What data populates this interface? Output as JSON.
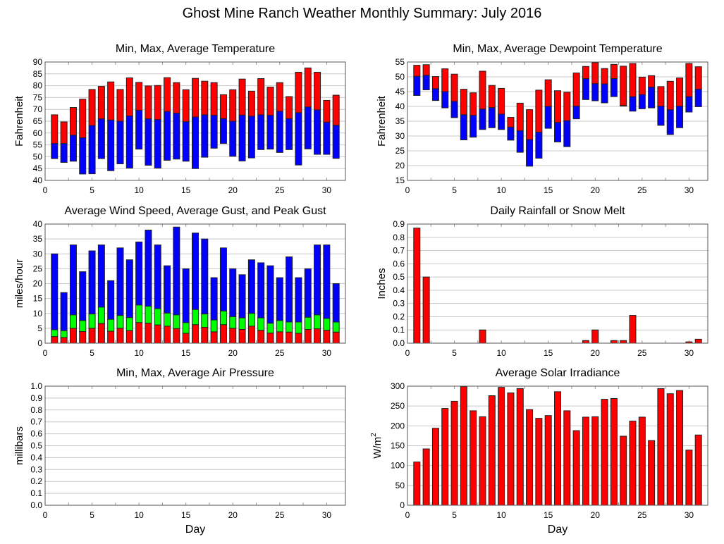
{
  "page_title": "Ghost Mine Ranch Weather Monthly Summary: July 2016",
  "colors": {
    "red": "#ff0000",
    "blue": "#0000ff",
    "green": "#00ff00",
    "grid": "#c8c8c8"
  },
  "chart_data": [
    {
      "id": "temperature",
      "type": "bar",
      "title": "Min, Max, Average Temperature",
      "ylabel": "Fahrenheit",
      "xlabel": "",
      "xlim": [
        0,
        32
      ],
      "ylim": [
        40,
        90
      ],
      "yticks": [
        "40",
        "45",
        "50",
        "55",
        "60",
        "65",
        "70",
        "75",
        "80",
        "85",
        "90"
      ],
      "xticks": [
        "0",
        "5",
        "10",
        "15",
        "20",
        "25",
        "30"
      ],
      "grid": true,
      "x": [
        1,
        2,
        3,
        4,
        5,
        6,
        7,
        8,
        9,
        10,
        11,
        12,
        13,
        14,
        15,
        16,
        17,
        18,
        19,
        20,
        21,
        22,
        23,
        24,
        25,
        26,
        27,
        28,
        29,
        30,
        31
      ],
      "series": [
        {
          "name": "Min",
          "values": [
            49.2,
            47.6,
            48.1,
            42.7,
            42.8,
            49.2,
            44.1,
            47.0,
            45.2,
            53.2,
            46.4,
            45.2,
            48.5,
            49.0,
            48.1,
            45.0,
            49.8,
            53.6,
            55.6,
            50.2,
            48.2,
            49.5,
            53.0,
            53.2,
            51.8,
            53.0,
            46.5,
            53.3,
            51.0,
            51.0,
            49.3
          ]
        },
        {
          "name": "Average",
          "values": [
            55.6,
            55.6,
            59.1,
            58.0,
            63.2,
            66.0,
            65.5,
            65.0,
            67.2,
            69.6,
            66.0,
            65.7,
            69.1,
            68.4,
            64.8,
            66.8,
            67.7,
            67.5,
            66.1,
            65.0,
            67.6,
            67.1,
            67.7,
            67.5,
            69.2,
            66.1,
            68.6,
            71.0,
            69.8,
            64.6,
            63.3
          ]
        },
        {
          "name": "Max",
          "values": [
            67.7,
            64.7,
            70.8,
            74.3,
            78.4,
            79.7,
            81.6,
            78.4,
            83.3,
            81.4,
            79.9,
            80.1,
            83.4,
            81.3,
            78.3,
            83.1,
            81.9,
            81.3,
            76.2,
            78.3,
            82.8,
            77.7,
            83.0,
            79.4,
            81.3,
            75.4,
            85.7,
            87.5,
            85.7,
            73.8,
            76.0
          ]
        }
      ]
    },
    {
      "id": "dewpoint",
      "type": "bar",
      "title": "Min, Max, Average Dewpoint Temperature",
      "ylabel": "Fahrenheit",
      "xlabel": "",
      "xlim": [
        0,
        32
      ],
      "ylim": [
        15,
        55
      ],
      "yticks": [
        "15",
        "20",
        "25",
        "30",
        "35",
        "40",
        "45",
        "50",
        "55"
      ],
      "xticks": [
        "0",
        "5",
        "10",
        "15",
        "20",
        "25",
        "30"
      ],
      "grid": true,
      "x": [
        1,
        2,
        3,
        4,
        5,
        6,
        7,
        8,
        9,
        10,
        11,
        12,
        13,
        14,
        15,
        16,
        17,
        18,
        19,
        20,
        21,
        22,
        23,
        24,
        25,
        26,
        27,
        28,
        29,
        30,
        31
      ],
      "series": [
        {
          "name": "Min",
          "values": [
            43.7,
            45.6,
            42.0,
            39.5,
            36.2,
            28.7,
            29.6,
            32.2,
            32.8,
            32.2,
            28.6,
            24.5,
            19.8,
            22.5,
            32.6,
            28.0,
            26.4,
            35.8,
            42.3,
            41.9,
            41.2,
            43.3,
            40.1,
            38.4,
            39.2,
            39.5,
            33.6,
            30.5,
            32.8,
            38.1,
            39.9
          ]
        },
        {
          "name": "Average",
          "values": [
            50.2,
            50.5,
            46.0,
            45.0,
            41.7,
            37.2,
            37.0,
            39.1,
            39.6,
            37.4,
            33.0,
            31.8,
            28.8,
            31.3,
            40.0,
            34.6,
            35.2,
            40.1,
            49.4,
            47.7,
            47.6,
            49.4,
            40.3,
            43.3,
            44.0,
            46.5,
            40.1,
            38.9,
            40.1,
            43.3,
            45.8
          ]
        },
        {
          "name": "Max",
          "values": [
            53.9,
            54.1,
            50.1,
            52.7,
            50.9,
            45.8,
            44.6,
            51.9,
            47.1,
            46.1,
            36.3,
            41.1,
            38.9,
            45.5,
            49.0,
            45.3,
            44.8,
            51.3,
            53.5,
            54.8,
            52.8,
            54.2,
            53.6,
            54.5,
            49.9,
            50.4,
            46.7,
            48.5,
            49.6,
            54.5,
            53.4
          ]
        }
      ]
    },
    {
      "id": "wind",
      "type": "bar",
      "title": "Average Wind Speed, Average Gust, and Peak Gust",
      "ylabel": "miles/hour",
      "xlabel": "",
      "xlim": [
        0,
        32
      ],
      "ylim": [
        0,
        40
      ],
      "yticks": [
        "0",
        "5",
        "10",
        "15",
        "20",
        "25",
        "30",
        "35",
        "40"
      ],
      "xticks": [
        "0",
        "5",
        "10",
        "15",
        "20",
        "25",
        "30"
      ],
      "grid": true,
      "x": [
        1,
        2,
        3,
        4,
        5,
        6,
        7,
        8,
        9,
        10,
        11,
        12,
        13,
        14,
        15,
        16,
        17,
        18,
        19,
        20,
        21,
        22,
        23,
        24,
        25,
        26,
        27,
        28,
        29,
        30,
        31
      ],
      "series": [
        {
          "name": "Average Wind Speed",
          "values": [
            2.2,
            1.9,
            5.0,
            3.9,
            5.0,
            6.6,
            4.0,
            5.0,
            4.2,
            6.9,
            6.7,
            6.1,
            5.7,
            4.9,
            3.3,
            6.2,
            5.3,
            3.8,
            6.2,
            5.0,
            4.6,
            5.7,
            4.3,
            3.4,
            3.8,
            3.7,
            3.3,
            4.6,
            4.8,
            4.3,
            3.7
          ]
        },
        {
          "name": "Average Gust",
          "values": [
            4.5,
            4.2,
            9.5,
            7.6,
            9.8,
            12.1,
            8.0,
            9.3,
            8.6,
            12.8,
            12.4,
            11.6,
            10.1,
            9.5,
            6.9,
            11.3,
            9.8,
            7.8,
            10.8,
            8.9,
            8.5,
            10.0,
            8.5,
            6.7,
            7.6,
            7.1,
            7.1,
            8.7,
            9.5,
            8.3,
            7.1
          ]
        },
        {
          "name": "Peak Gust",
          "values": [
            30,
            17,
            33,
            24,
            31,
            33,
            21,
            32,
            28,
            34,
            38,
            33,
            26,
            39,
            25,
            37,
            35,
            22,
            32,
            25,
            23,
            28,
            27,
            26,
            22,
            29,
            22,
            25,
            33,
            33,
            20
          ]
        }
      ]
    },
    {
      "id": "rainfall",
      "type": "bar",
      "title": "Daily Rainfall or Snow Melt",
      "ylabel": "Inches",
      "xlabel": "",
      "xlim": [
        0,
        32
      ],
      "ylim": [
        0,
        0.9
      ],
      "yticks": [
        "0.0",
        "0.1",
        "0.2",
        "0.3",
        "0.4",
        "0.5",
        "0.6",
        "0.7",
        "0.8",
        "0.9"
      ],
      "xticks": [
        "0",
        "5",
        "10",
        "15",
        "20",
        "25",
        "30"
      ],
      "grid": true,
      "x": [
        1,
        2,
        8,
        19,
        20,
        22,
        23,
        24,
        30,
        31
      ],
      "values": [
        0.87,
        0.5,
        0.1,
        0.02,
        0.1,
        0.02,
        0.02,
        0.21,
        0.01,
        0.03
      ]
    },
    {
      "id": "pressure",
      "type": "bar",
      "title": "Min, Max, Average Air Pressure",
      "ylabel": "millibars",
      "xlabel": "Day",
      "xlim": [
        0,
        32
      ],
      "ylim": [
        0,
        1
      ],
      "yticks": [
        "0.0",
        "0.1",
        "0.2",
        "0.3",
        "0.4",
        "0.5",
        "0.6",
        "0.7",
        "0.8",
        "0.9",
        "1.0"
      ],
      "xticks": [
        "0",
        "5",
        "10",
        "15",
        "20",
        "25",
        "30"
      ],
      "grid": true,
      "x": [],
      "values": []
    },
    {
      "id": "solar",
      "type": "bar",
      "title": "Average Solar Irradiance",
      "ylabel": "W/m",
      "ylabel_sup": "2",
      "xlabel": "Day",
      "xlim": [
        0,
        32
      ],
      "ylim": [
        0,
        300
      ],
      "yticks": [
        "0",
        "50",
        "100",
        "150",
        "200",
        "250",
        "300"
      ],
      "xticks": [
        "0",
        "5",
        "10",
        "15",
        "20",
        "25",
        "30"
      ],
      "grid": true,
      "x": [
        1,
        2,
        3,
        4,
        5,
        6,
        7,
        8,
        9,
        10,
        11,
        12,
        13,
        14,
        15,
        16,
        17,
        18,
        19,
        20,
        21,
        22,
        23,
        24,
        25,
        26,
        27,
        28,
        29,
        30,
        31
      ],
      "values": [
        109,
        142,
        194,
        244,
        262,
        299,
        238,
        223,
        276,
        297,
        283,
        294,
        241,
        219,
        226,
        286,
        238,
        188,
        222,
        223,
        267,
        269,
        174,
        212,
        222,
        163,
        294,
        281,
        289,
        139,
        177
      ]
    }
  ]
}
